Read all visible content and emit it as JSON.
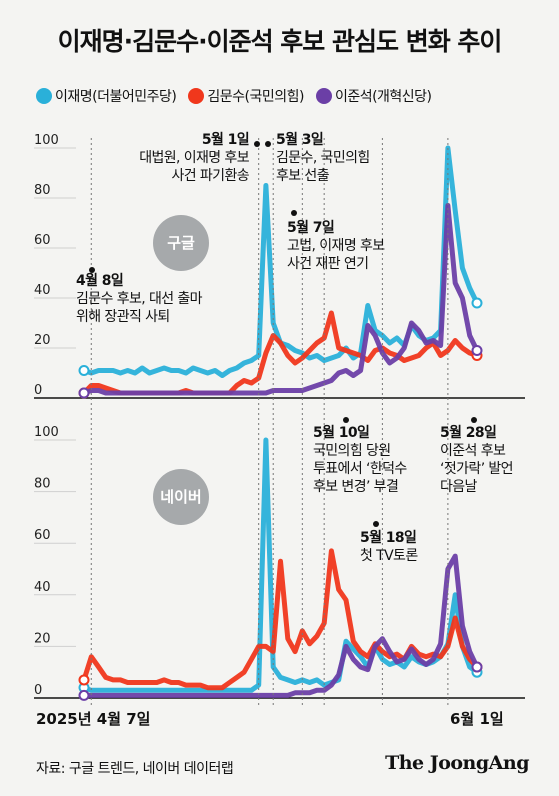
{
  "title": "이재명·김문수·이준석 후보 관심도 변화 추이",
  "legend": [
    {
      "name": "이재명(더불어민주당)",
      "color": "#2ab0d9"
    },
    {
      "name": "김문수(국민의힘)",
      "color": "#f0371c"
    },
    {
      "name": "이준석(개혁신당)",
      "color": "#6b3fa6"
    }
  ],
  "footer": {
    "source": "자료: 구글 트렌드, 네이버 데이터랩",
    "brand": "The JoongAng"
  },
  "chart_data": [
    {
      "type": "line",
      "panel_label": "구글",
      "ylim": [
        0,
        100
      ],
      "yticks": [
        "0",
        "20",
        "40",
        "60",
        "80",
        "100"
      ],
      "x_first_label": "2025년 4월 7일",
      "x_last_label": "6월 1일",
      "series": [
        {
          "name": "이재명",
          "color": "#2ab0d9",
          "values": [
            11,
            10,
            11,
            11,
            11,
            10,
            11,
            10,
            12,
            10,
            11,
            12,
            11,
            11,
            10,
            12,
            11,
            10,
            11,
            9,
            11,
            12,
            14,
            15,
            17,
            85,
            30,
            22,
            21,
            19,
            18,
            16,
            17,
            15,
            16,
            17,
            20,
            16,
            18,
            37,
            27,
            25,
            22,
            24,
            21,
            29,
            25,
            23,
            24,
            27,
            100,
            75,
            52,
            44,
            38
          ]
        },
        {
          "name": "김문수",
          "color": "#f0371c",
          "values": [
            2,
            5,
            5,
            4,
            3,
            2,
            2,
            2,
            2,
            2,
            2,
            2,
            2,
            2,
            3,
            2,
            2,
            2,
            2,
            2,
            2,
            5,
            7,
            6,
            8,
            18,
            25,
            22,
            17,
            14,
            16,
            19,
            22,
            24,
            34,
            20,
            19,
            18,
            17,
            15,
            19,
            20,
            18,
            17,
            15,
            16,
            17,
            20,
            22,
            17,
            19,
            23,
            20,
            18,
            17
          ]
        },
        {
          "name": "이준석",
          "color": "#6b3fa6",
          "values": [
            2,
            3,
            3,
            2,
            2,
            2,
            2,
            2,
            2,
            2,
            2,
            2,
            2,
            2,
            2,
            2,
            2,
            2,
            2,
            2,
            2,
            2,
            2,
            2,
            2,
            2,
            3,
            3,
            3,
            3,
            3,
            4,
            5,
            6,
            7,
            10,
            11,
            9,
            11,
            29,
            25,
            18,
            14,
            16,
            20,
            30,
            27,
            22,
            23,
            21,
            77,
            46,
            40,
            25,
            19
          ]
        }
      ]
    },
    {
      "type": "line",
      "panel_label": "네이버",
      "ylim": [
        0,
        100
      ],
      "yticks": [
        "0",
        "20",
        "40",
        "60",
        "80",
        "100"
      ],
      "series": [
        {
          "name": "이재명",
          "color": "#2ab0d9",
          "values": [
            4,
            3,
            3,
            3,
            3,
            3,
            3,
            3,
            3,
            3,
            3,
            3,
            3,
            3,
            3,
            3,
            3,
            3,
            3,
            3,
            3,
            3,
            3,
            3,
            5,
            100,
            12,
            8,
            7,
            6,
            7,
            6,
            7,
            5,
            6,
            7,
            22,
            19,
            16,
            12,
            20,
            15,
            13,
            14,
            12,
            16,
            14,
            13,
            14,
            16,
            21,
            40,
            20,
            12,
            10
          ]
        },
        {
          "name": "김문수",
          "color": "#f0371c",
          "values": [
            7,
            16,
            12,
            8,
            7,
            7,
            6,
            6,
            6,
            6,
            6,
            7,
            6,
            6,
            5,
            5,
            5,
            4,
            4,
            4,
            6,
            8,
            10,
            15,
            20,
            20,
            18,
            53,
            23,
            18,
            26,
            21,
            24,
            29,
            57,
            42,
            38,
            22,
            18,
            16,
            21,
            18,
            16,
            17,
            15,
            20,
            17,
            16,
            17,
            16,
            20,
            31,
            20,
            15,
            12
          ]
        },
        {
          "name": "이준석",
          "color": "#6b3fa6",
          "values": [
            1,
            1,
            1,
            1,
            1,
            1,
            1,
            1,
            1,
            1,
            1,
            1,
            1,
            1,
            1,
            1,
            1,
            1,
            1,
            1,
            1,
            1,
            1,
            1,
            1,
            1,
            1,
            1,
            1,
            2,
            2,
            2,
            3,
            3,
            5,
            9,
            20,
            15,
            12,
            11,
            20,
            23,
            18,
            14,
            15,
            19,
            15,
            13,
            15,
            21,
            50,
            55,
            28,
            18,
            12
          ]
        }
      ]
    }
  ],
  "annotations": [
    {
      "date": "5월 1일",
      "text": [
        "대법원, 이재명 후보",
        "사건 파기환송"
      ]
    },
    {
      "date": "5월 3일",
      "text": [
        "김문수, 국민의힘",
        "후보 선출"
      ]
    },
    {
      "date": "5월 7일",
      "text": [
        "고법, 이재명 후보",
        "사건 재판 연기"
      ]
    },
    {
      "date": "4월 8일",
      "text": [
        "김문수 후보, 대선 출마",
        "위해 장관직 사퇴"
      ]
    },
    {
      "date": "5월 10일",
      "text": [
        "국민의힘 당원",
        "투표에서 ‘한덕수",
        "후보 변경’ 부결"
      ]
    },
    {
      "date": "5월 28일",
      "text": [
        "이준석 후보",
        "‘젓가락’ 발언",
        "다음날"
      ]
    },
    {
      "date": "5월 18일",
      "text": [
        "첫 TV토론"
      ]
    }
  ]
}
